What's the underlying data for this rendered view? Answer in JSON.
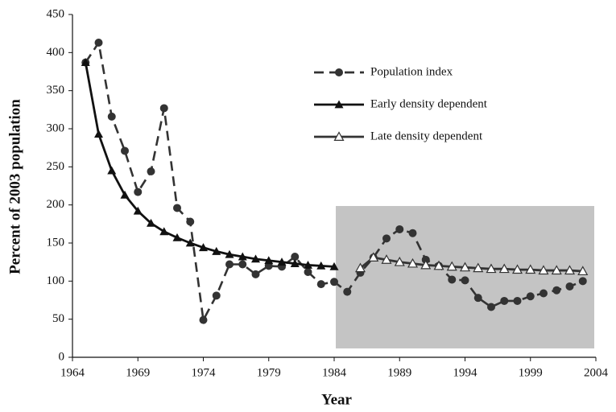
{
  "chart_data": {
    "type": "line",
    "xlabel": "Year",
    "ylabel": "Percent of 2003 population",
    "x": [
      1965,
      1966,
      1967,
      1968,
      1969,
      1970,
      1971,
      1972,
      1973,
      1974,
      1975,
      1976,
      1977,
      1978,
      1979,
      1980,
      1981,
      1982,
      1983,
      1984,
      1985,
      1986,
      1987,
      1988,
      1989,
      1990,
      1991,
      1992,
      1993,
      1994,
      1995,
      1996,
      1997,
      1998,
      1999,
      2000,
      2001,
      2002,
      2003
    ],
    "xlim": [
      1964,
      2004
    ],
    "xticks": [
      1964,
      1969,
      1974,
      1979,
      1984,
      1989,
      1994,
      1999,
      2004
    ],
    "ylim": [
      0,
      450
    ],
    "yticks": [
      0,
      50,
      100,
      150,
      200,
      250,
      300,
      350,
      400,
      450
    ],
    "legend": "top-center",
    "series": [
      {
        "name": "Population index",
        "color": "#333333",
        "dashed": true,
        "marker": "circle",
        "values": [
          387,
          413,
          316,
          271,
          217,
          244,
          327,
          196,
          178,
          49,
          81,
          122,
          122,
          109,
          120,
          119,
          132,
          112,
          96,
          99,
          86,
          111,
          131,
          156,
          168,
          163,
          128,
          120,
          102,
          101,
          78,
          66,
          74,
          74,
          80,
          84,
          88,
          93,
          100
        ]
      },
      {
        "name": "Early density dependent",
        "color": "#111111",
        "dashed": false,
        "marker": "triangle",
        "values": [
          387,
          293,
          245,
          213,
          192,
          176,
          165,
          157,
          150,
          144,
          139,
          135,
          132,
          129,
          127,
          125,
          123,
          121,
          120,
          119,
          null,
          null,
          null,
          null,
          null,
          null,
          null,
          null,
          null,
          null,
          null,
          null,
          null,
          null,
          null,
          null,
          null,
          null,
          null
        ]
      },
      {
        "name": "Late density dependent",
        "color": "#333333",
        "dashed": false,
        "marker": "triangle-open",
        "values": [
          null,
          null,
          null,
          null,
          null,
          null,
          null,
          null,
          null,
          null,
          null,
          null,
          null,
          null,
          null,
          null,
          null,
          null,
          null,
          null,
          null,
          117,
          131,
          128,
          125,
          123,
          121,
          120,
          119,
          118,
          117,
          116,
          116,
          115,
          115,
          114,
          114,
          114,
          113
        ]
      }
    ]
  }
}
